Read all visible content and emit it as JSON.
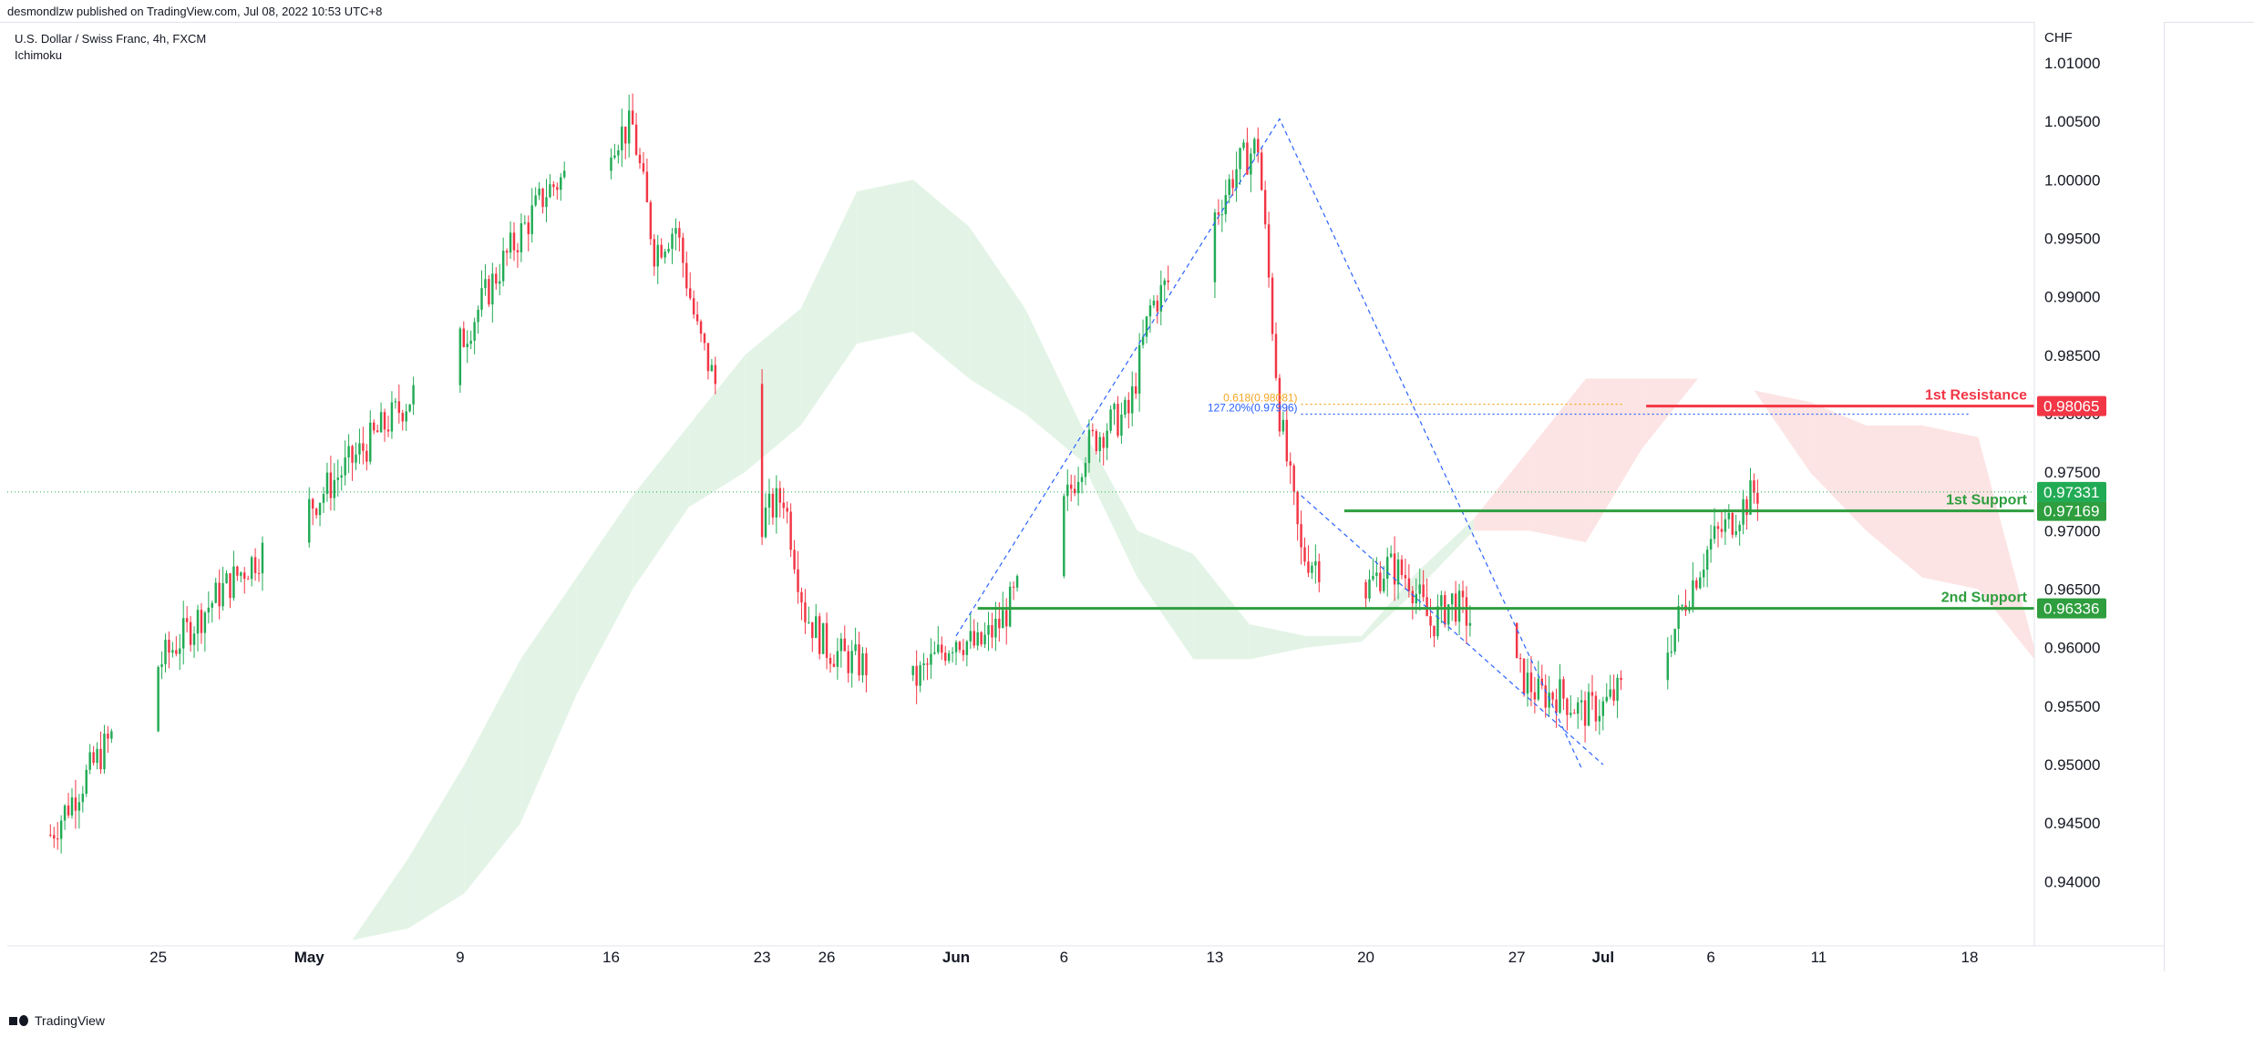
{
  "header": {
    "published_by": "desmondlzw published on TradingView.com, Jul 08, 2022 10:53 UTC+8"
  },
  "legend": {
    "symbol_line": "U.S. Dollar / Swiss Franc, 4h, FXCM",
    "indicator": "Ichimoku"
  },
  "footer": {
    "brand": "TradingView"
  },
  "colors": {
    "up": "#22ab55",
    "down": "#f23645",
    "support": "#2e9e3e",
    "resistance": "#f23645",
    "cloud_bull": "#e3f4e6",
    "cloud_bear": "#fde4e4",
    "fib_blue": "#2962ff",
    "fib_orange": "#f5a623"
  },
  "chart_data": {
    "type": "candlestick",
    "symbol": "USDCHF",
    "timeframe": "4h",
    "price_axis_unit": "CHF",
    "ylim": [
      0.9345,
      1.0135
    ],
    "y_ticks": [
      "1.01000",
      "1.00500",
      "1.00000",
      "0.99500",
      "0.99000",
      "0.98500",
      "0.98000",
      "0.97500",
      "0.97000",
      "0.96500",
      "0.96000",
      "0.95500",
      "0.95000",
      "0.94500",
      "0.94000"
    ],
    "x_ticks": [
      {
        "label": "25",
        "date": "2022-04-25",
        "bold": false
      },
      {
        "label": "May",
        "date": "2022-05-02",
        "bold": true
      },
      {
        "label": "9",
        "date": "2022-05-09",
        "bold": false
      },
      {
        "label": "16",
        "date": "2022-05-16",
        "bold": false
      },
      {
        "label": "23",
        "date": "2022-05-23",
        "bold": false
      },
      {
        "label": "26",
        "date": "2022-05-26",
        "bold": false
      },
      {
        "label": "Jun",
        "date": "2022-06-01",
        "bold": true
      },
      {
        "label": "6",
        "date": "2022-06-06",
        "bold": false
      },
      {
        "label": "13",
        "date": "2022-06-13",
        "bold": false
      },
      {
        "label": "20",
        "date": "2022-06-20",
        "bold": false
      },
      {
        "label": "27",
        "date": "2022-06-27",
        "bold": false
      },
      {
        "label": "Jul",
        "date": "2022-07-01",
        "bold": true
      },
      {
        "label": "6",
        "date": "2022-07-06",
        "bold": false
      },
      {
        "label": "11",
        "date": "2022-07-11",
        "bold": false
      },
      {
        "label": "18",
        "date": "2022-07-18",
        "bold": false
      }
    ],
    "price_path": [
      {
        "date": "2022-04-20",
        "price": 0.944
      },
      {
        "date": "2022-04-22",
        "price": 0.95
      },
      {
        "date": "2022-04-25",
        "price": 0.9585
      },
      {
        "date": "2022-04-28",
        "price": 0.965
      },
      {
        "date": "2022-05-02",
        "price": 0.972
      },
      {
        "date": "2022-05-05",
        "price": 0.978
      },
      {
        "date": "2022-05-09",
        "price": 0.986
      },
      {
        "date": "2022-05-11",
        "price": 0.993
      },
      {
        "date": "2022-05-13",
        "price": 0.999
      },
      {
        "date": "2022-05-16",
        "price": 1.0035
      },
      {
        "date": "2022-05-17",
        "price": 1.0045
      },
      {
        "date": "2022-05-18",
        "price": 0.994
      },
      {
        "date": "2022-05-19",
        "price": 0.996
      },
      {
        "date": "2022-05-20",
        "price": 0.987
      },
      {
        "date": "2022-05-23",
        "price": 0.971
      },
      {
        "date": "2022-05-24",
        "price": 0.973
      },
      {
        "date": "2022-05-25",
        "price": 0.963
      },
      {
        "date": "2022-05-26",
        "price": 0.96
      },
      {
        "date": "2022-05-27",
        "price": 0.959
      },
      {
        "date": "2022-05-30",
        "price": 0.957
      },
      {
        "date": "2022-06-01",
        "price": 0.961
      },
      {
        "date": "2022-06-02",
        "price": 0.96
      },
      {
        "date": "2022-06-03",
        "price": 0.962
      },
      {
        "date": "2022-06-06",
        "price": 0.972
      },
      {
        "date": "2022-06-07",
        "price": 0.977
      },
      {
        "date": "2022-06-08",
        "price": 0.979
      },
      {
        "date": "2022-06-09",
        "price": 0.98
      },
      {
        "date": "2022-06-10",
        "price": 0.989
      },
      {
        "date": "2022-06-13",
        "price": 0.997
      },
      {
        "date": "2022-06-14",
        "price": 1.001
      },
      {
        "date": "2022-06-15",
        "price": 1.003
      },
      {
        "date": "2022-06-16",
        "price": 0.98
      },
      {
        "date": "2022-06-17",
        "price": 0.968
      },
      {
        "date": "2022-06-20",
        "price": 0.965
      },
      {
        "date": "2022-06-21",
        "price": 0.967
      },
      {
        "date": "2022-06-22",
        "price": 0.966
      },
      {
        "date": "2022-06-23",
        "price": 0.962
      },
      {
        "date": "2022-06-24",
        "price": 0.964
      },
      {
        "date": "2022-06-27",
        "price": 0.958
      },
      {
        "date": "2022-06-28",
        "price": 0.956
      },
      {
        "date": "2022-06-29",
        "price": 0.956
      },
      {
        "date": "2022-06-30",
        "price": 0.9545
      },
      {
        "date": "2022-07-01",
        "price": 0.955
      },
      {
        "date": "2022-07-04",
        "price": 0.96
      },
      {
        "date": "2022-07-05",
        "price": 0.965
      },
      {
        "date": "2022-07-06",
        "price": 0.969
      },
      {
        "date": "2022-07-07",
        "price": 0.971
      },
      {
        "date": "2022-07-08",
        "price": 0.9733
      }
    ],
    "levels": [
      {
        "name": "1st Resistance",
        "price": 0.98065,
        "label_value": "0.98065",
        "color": "#f23645",
        "from_date": "2022-07-03"
      },
      {
        "name": "1st Support",
        "price": 0.97169,
        "label_value": "0.97169",
        "color": "#2e9e3e",
        "from_date": "2022-06-19"
      },
      {
        "name": "2nd Support",
        "price": 0.96336,
        "label_value": "0.96336",
        "color": "#2e9e3e",
        "from_date": "2022-06-02"
      }
    ],
    "current_price": {
      "value": 0.97331,
      "label_value": "0.97331"
    },
    "fib_annotations": [
      {
        "text": "0.618(0.98081)",
        "price": 0.98081,
        "color": "#f5a623",
        "from_date": "2022-06-17",
        "to_date": "2022-07-02"
      },
      {
        "text": "127.20%(0.97996)",
        "price": 0.97996,
        "color": "#2962ff",
        "from_date": "2022-06-17",
        "to_date": "2022-07-18"
      }
    ],
    "trendlines": [
      {
        "points": [
          {
            "date": "2022-06-01",
            "price": 0.961
          },
          {
            "date": "2022-06-16",
            "price": 1.0052
          },
          {
            "date": "2022-06-30",
            "price": 0.9497
          }
        ],
        "color": "#2962ff",
        "style": "dashed"
      },
      {
        "points": [
          {
            "date": "2022-06-17",
            "price": 0.973
          },
          {
            "date": "2022-07-01",
            "price": 0.95
          }
        ],
        "color": "#2962ff",
        "style": "dashed"
      }
    ],
    "ichimoku_cloud": {
      "span_a": [
        0.935,
        0.942,
        0.95,
        0.959,
        0.966,
        0.973,
        0.979,
        0.985,
        0.989,
        0.999,
        1.0,
        0.996,
        0.989,
        0.979,
        0.97,
        0.968,
        0.962,
        0.961,
        0.961,
        0.9665,
        0.97,
        0.97,
        0.969,
        0.977,
        0.983,
        0.982,
        0.975,
        0.97,
        0.966,
        0.965,
        0.96,
        0.959,
        0.96,
        0.961,
        0.967
      ],
      "span_b": [
        0.935,
        0.936,
        0.939,
        0.945,
        0.956,
        0.965,
        0.972,
        0.975,
        0.979,
        0.986,
        0.987,
        0.983,
        0.98,
        0.976,
        0.966,
        0.959,
        0.959,
        0.96,
        0.9605,
        0.965,
        0.971,
        0.977,
        0.983,
        0.983,
        0.983,
        0.982,
        0.981,
        0.979,
        0.979,
        0.978,
        0.959,
        0.957,
        0.958,
        0.959,
        0.962
      ]
    },
    "grid": false,
    "legend_position": "top-left"
  }
}
